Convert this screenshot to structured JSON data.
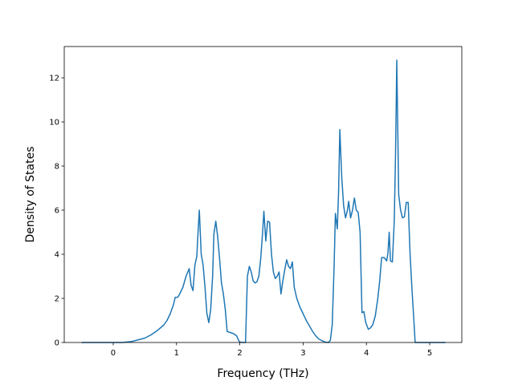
{
  "chart_data": {
    "type": "line",
    "xlabel": "Frequency (THz)",
    "ylabel": "Density of States",
    "x": [
      -0.5,
      0,
      0.15,
      0.3,
      0.5,
      0.6,
      0.7,
      0.8,
      0.85,
      0.9,
      0.95,
      0.98,
      1.02,
      1.05,
      1.1,
      1.15,
      1.2,
      1.23,
      1.26,
      1.29,
      1.32,
      1.34,
      1.36,
      1.39,
      1.42,
      1.45,
      1.48,
      1.51,
      1.54,
      1.57,
      1.59,
      1.62,
      1.65,
      1.68,
      1.71,
      1.74,
      1.77,
      1.8,
      1.85,
      1.9,
      1.95,
      1.98,
      2.0,
      2.05,
      2.09,
      2.12,
      2.15,
      2.18,
      2.21,
      2.24,
      2.27,
      2.3,
      2.33,
      2.36,
      2.38,
      2.41,
      2.44,
      2.47,
      2.5,
      2.53,
      2.56,
      2.59,
      2.62,
      2.65,
      2.68,
      2.71,
      2.74,
      2.77,
      2.8,
      2.83,
      2.86,
      2.9,
      2.95,
      3.0,
      3.05,
      3.1,
      3.15,
      3.2,
      3.25,
      3.3,
      3.35,
      3.4,
      3.43,
      3.46,
      3.49,
      3.51,
      3.54,
      3.56,
      3.58,
      3.61,
      3.64,
      3.67,
      3.7,
      3.72,
      3.75,
      3.78,
      3.81,
      3.84,
      3.87,
      3.9,
      3.93,
      3.96,
      3.99,
      4.03,
      4.06,
      4.1,
      4.14,
      4.18,
      4.21,
      4.24,
      4.28,
      4.32,
      4.34,
      4.36,
      4.38,
      4.41,
      4.44,
      4.46,
      4.48,
      4.51,
      4.54,
      4.57,
      4.6,
      4.63,
      4.66,
      4.69,
      4.72,
      4.75,
      4.77,
      5.25
    ],
    "series": [
      {
        "name": "DOS",
        "color": "#1f77b4",
        "values": [
          0,
          0,
          0,
          0.05,
          0.2,
          0.35,
          0.55,
          0.8,
          1.0,
          1.3,
          1.7,
          2.05,
          2.05,
          2.2,
          2.5,
          3.0,
          3.35,
          2.6,
          2.35,
          3.5,
          3.9,
          5.0,
          6.0,
          4.0,
          3.5,
          2.5,
          1.3,
          0.9,
          1.5,
          3.0,
          4.9,
          5.5,
          4.8,
          3.8,
          2.7,
          2.2,
          1.5,
          0.5,
          0.45,
          0.4,
          0.3,
          0.1,
          0.02,
          0,
          0,
          3.0,
          3.45,
          3.2,
          2.8,
          2.7,
          2.75,
          3.0,
          3.8,
          5.0,
          5.95,
          4.6,
          5.5,
          5.45,
          4.0,
          3.2,
          2.9,
          3.0,
          3.2,
          2.2,
          2.8,
          3.3,
          3.75,
          3.45,
          3.35,
          3.65,
          2.5,
          2.0,
          1.6,
          1.3,
          1.0,
          0.75,
          0.5,
          0.3,
          0.15,
          0.08,
          0.02,
          0,
          0.1,
          0.8,
          3.5,
          5.85,
          5.15,
          6.8,
          9.65,
          7.5,
          6.2,
          5.65,
          6.0,
          6.4,
          5.65,
          6.0,
          6.55,
          6.0,
          5.9,
          5.0,
          1.35,
          1.4,
          0.9,
          0.6,
          0.65,
          0.8,
          1.2,
          2.0,
          2.8,
          3.85,
          3.85,
          3.7,
          4.05,
          5.0,
          3.7,
          3.65,
          5.5,
          8.5,
          12.8,
          6.7,
          6.0,
          5.65,
          5.7,
          6.35,
          6.35,
          4.0,
          2.4,
          1.0,
          0,
          0
        ]
      }
    ],
    "xlim": [
      -0.774,
      5.507
    ],
    "xticks": [
      0,
      1,
      2,
      3,
      4,
      5
    ],
    "ylim": [
      0,
      13.42
    ],
    "yticks": [
      0,
      2,
      4,
      6,
      8,
      10,
      12
    ]
  }
}
